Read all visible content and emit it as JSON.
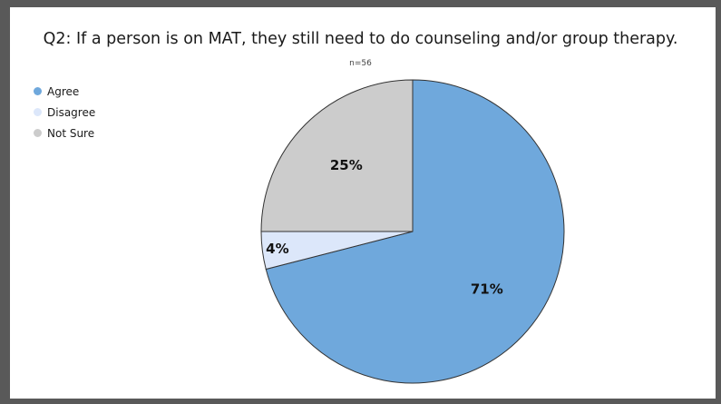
{
  "title": "Q2: If a person is on MAT, they still need to do counseling and/or group therapy.",
  "subtitle": "n=56",
  "colors": {
    "frame": "#595959",
    "agree": "#6FA8DC",
    "disagree": "#DCE7FA",
    "not_sure": "#CCCCCC",
    "slice_border": "#333333"
  },
  "chart_data": {
    "type": "pie",
    "title": "Q2: If a person is on MAT, they still need to do counseling and/or group therapy.",
    "subtitle": "n=56",
    "legend_position": "top-left",
    "slices": [
      {
        "label": "Agree",
        "value": 71,
        "display": "71%",
        "color": "#6FA8DC"
      },
      {
        "label": "Disagree",
        "value": 4,
        "display": "4%",
        "color": "#DCE7FA"
      },
      {
        "label": "Not Sure",
        "value": 25,
        "display": "25%",
        "color": "#CCCCCC"
      }
    ]
  }
}
